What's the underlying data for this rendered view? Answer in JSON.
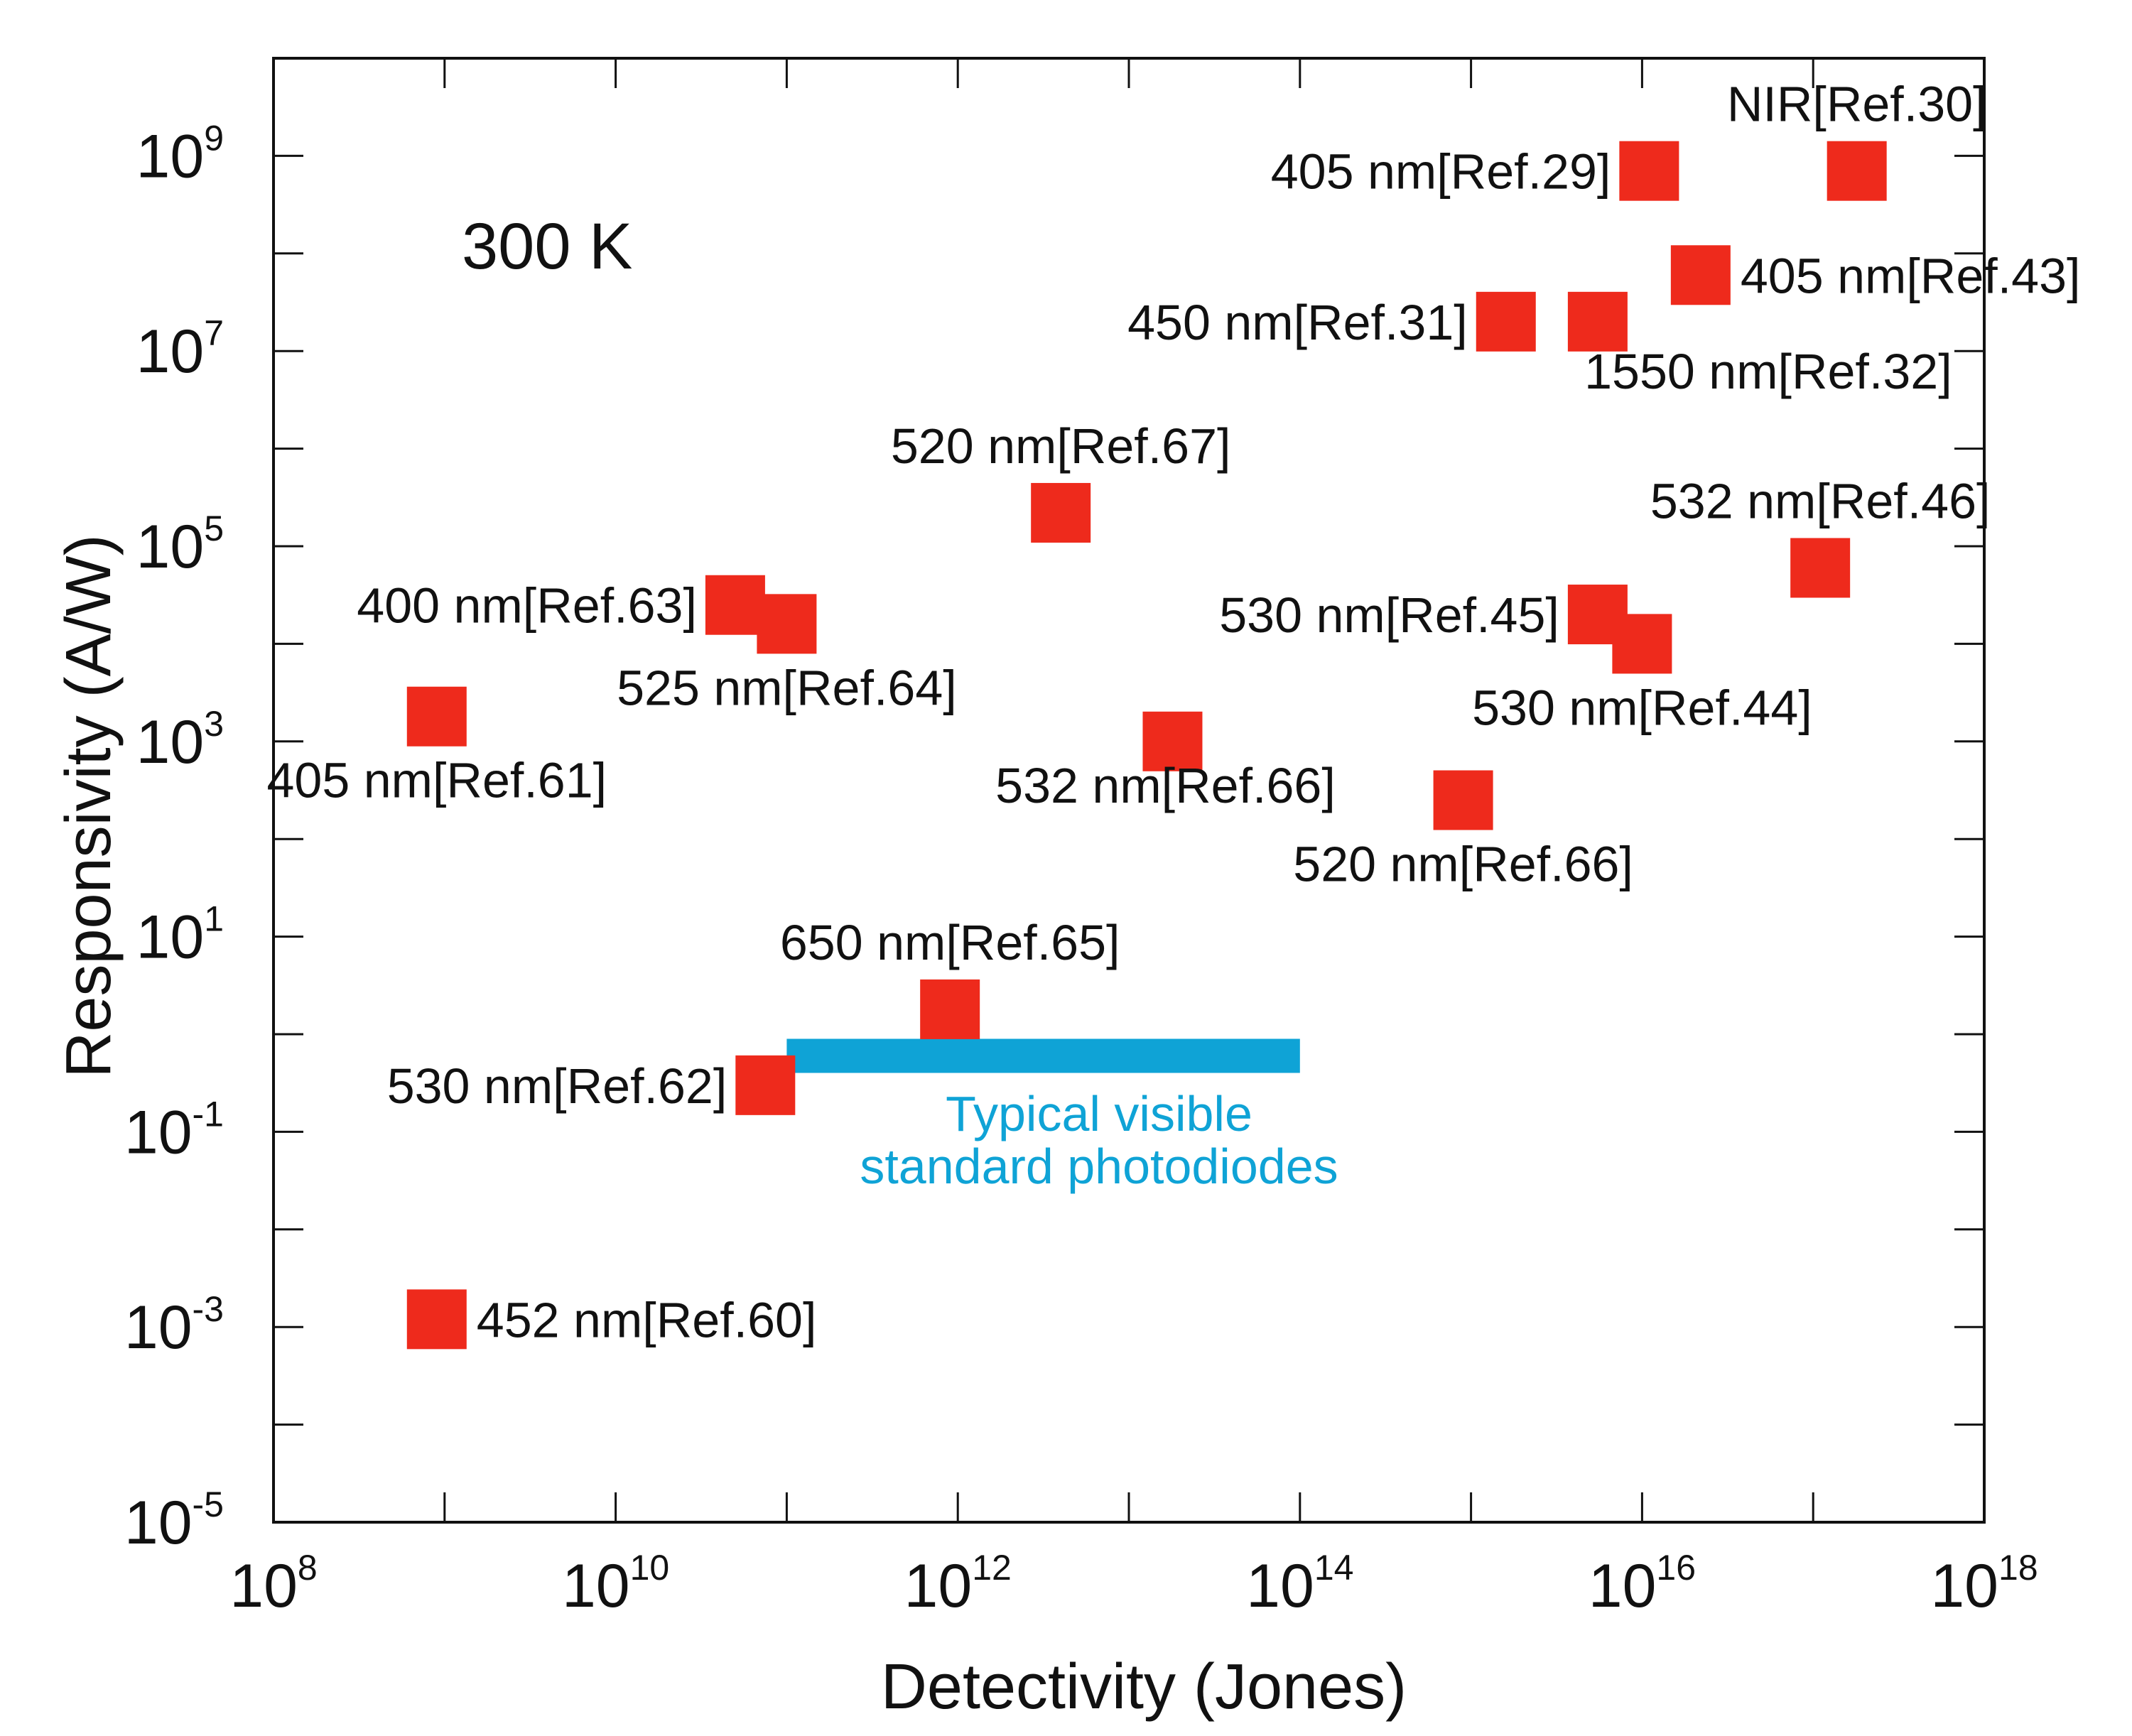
{
  "chart_data": {
    "type": "scatter",
    "xlabel": "Detectivity (Jones)",
    "ylabel": "Responsivity (A/W)",
    "x_scale": "log",
    "y_scale": "log",
    "xlim": [
      100000000.0,
      1e+18
    ],
    "ylim": [
      1e-05,
      10000000000.0
    ],
    "x_ticks": [
      {
        "value": 100000000.0,
        "base": "10",
        "exp": "8"
      },
      {
        "value": 10000000000.0,
        "base": "10",
        "exp": "10"
      },
      {
        "value": 1000000000000.0,
        "base": "10",
        "exp": "12"
      },
      {
        "value": 100000000000000.0,
        "base": "10",
        "exp": "14"
      },
      {
        "value": 1e+16,
        "base": "10",
        "exp": "16"
      },
      {
        "value": 1e+18,
        "base": "10",
        "exp": "18"
      }
    ],
    "y_ticks": [
      {
        "value": 1e-05,
        "base": "10",
        "exp": "-5"
      },
      {
        "value": 0.001,
        "base": "10",
        "exp": "-3"
      },
      {
        "value": 0.1,
        "base": "10",
        "exp": "-1"
      },
      {
        "value": 10.0,
        "base": "10",
        "exp": "1"
      },
      {
        "value": 1000.0,
        "base": "10",
        "exp": "3"
      },
      {
        "value": 100000.0,
        "base": "10",
        "exp": "5"
      },
      {
        "value": 10000000.0,
        "base": "10",
        "exp": "7"
      },
      {
        "value": 1000000000.0,
        "base": "10",
        "exp": "9"
      }
    ],
    "annotation": "300 K",
    "marker_color": "#ee2a1c",
    "points": [
      {
        "x": 900000000.0,
        "y": 0.0012,
        "label": "452 nm[Ref.60]",
        "label_pos": "right"
      },
      {
        "x": 900000000.0,
        "y": 1800.0,
        "label": "405 nm[Ref.61]",
        "label_pos": "below"
      },
      {
        "x": 75000000000.0,
        "y": 0.3,
        "label": "530 nm[Ref.62]",
        "label_pos": "left"
      },
      {
        "x": 50000000000.0,
        "y": 25000.0,
        "label": "400 nm[Ref.63]",
        "label_pos": "left"
      },
      {
        "x": 100000000000.0,
        "y": 16000.0,
        "label": "525 nm[Ref.64]",
        "label_pos": "below"
      },
      {
        "x": 900000000000.0,
        "y": 1.8,
        "label": "650 nm[Ref.65]",
        "label_pos": "above"
      },
      {
        "x": 4000000000000.0,
        "y": 220000.0,
        "label": "520 nm[Ref.67]",
        "label_pos": "above"
      },
      {
        "x": 18000000000000.0,
        "y": 1000.0,
        "label": "532 nm[Ref.66]",
        "label_pos": "below-left"
      },
      {
        "x": 900000000000000.0,
        "y": 250.0,
        "label": "520 nm[Ref.66]",
        "label_pos": "below"
      },
      {
        "x": 1600000000000000.0,
        "y": 20000000.0,
        "label": "450 nm[Ref.31]",
        "label_pos": "left"
      },
      {
        "x": 5500000000000000.0,
        "y": 20000000.0,
        "label": "1550 nm[Ref.32]",
        "label_pos": "below-right"
      },
      {
        "x": 1.1e+16,
        "y": 700000000.0,
        "label": "405 nm[Ref.29]",
        "label_pos": "left"
      },
      {
        "x": 2.2e+16,
        "y": 60000000.0,
        "label": "405 nm[Ref.43]",
        "label_pos": "right"
      },
      {
        "x": 1.8e+17,
        "y": 700000000.0,
        "label": "NIR[Ref.30]",
        "label_pos": "above"
      },
      {
        "x": 5500000000000000.0,
        "y": 20000.0,
        "label": "530 nm[Ref.45]",
        "label_pos": "left"
      },
      {
        "x": 1e+16,
        "y": 10000.0,
        "label": "530 nm[Ref.44]",
        "label_pos": "below"
      },
      {
        "x": 1.1e+17,
        "y": 60000.0,
        "label": "532 nm[Ref.46]",
        "label_pos": "above"
      }
    ],
    "band": {
      "x_start": 100000000000.0,
      "x_end": 100000000000000.0,
      "y": 0.6,
      "color": "#0fa3d6",
      "label_lines": [
        "Typical visible",
        "standard photodiodes"
      ]
    }
  }
}
